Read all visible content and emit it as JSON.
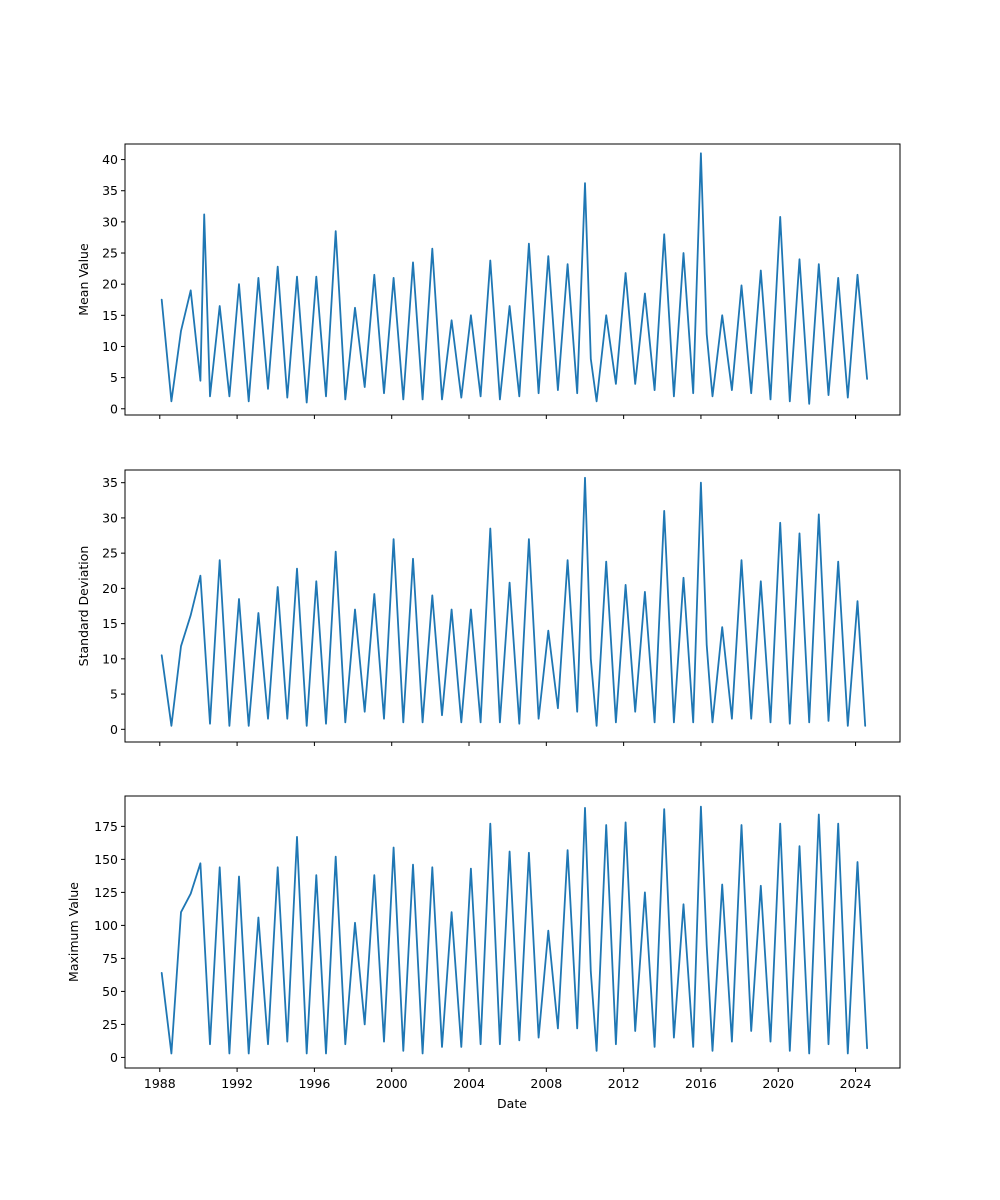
{
  "figure": {
    "xlabel": "Date",
    "line_color": "#1f77b4",
    "x_ticks": [
      "1988",
      "1992",
      "1996",
      "2000",
      "2004",
      "2008",
      "2012",
      "2016",
      "2020",
      "2024"
    ]
  },
  "chart_data": [
    {
      "type": "line",
      "title": "",
      "ylabel": "Mean Value",
      "xlabel": "",
      "x_unit": "year",
      "xlim": [
        1986.2,
        2026.3
      ],
      "ylim": [
        -1,
        42.5
      ],
      "y_ticks": [
        "0",
        "5",
        "10",
        "15",
        "20",
        "25",
        "30",
        "35",
        "40"
      ],
      "grid": false,
      "x": [
        1988.1,
        1988.6,
        1989.1,
        1989.6,
        1990.1,
        1990.3,
        1990.6,
        1991.1,
        1991.6,
        1992.1,
        1992.6,
        1993.1,
        1993.6,
        1994.1,
        1994.6,
        1995.1,
        1995.6,
        1996.1,
        1996.6,
        1997.1,
        1997.6,
        1998.1,
        1998.6,
        1999.1,
        1999.6,
        2000.1,
        2000.6,
        2001.1,
        2001.6,
        2002.1,
        2002.6,
        2003.1,
        2003.6,
        2004.1,
        2004.6,
        2005.1,
        2005.6,
        2006.1,
        2006.6,
        2007.1,
        2007.6,
        2008.1,
        2008.6,
        2009.1,
        2009.6,
        2010.0,
        2010.3,
        2010.6,
        2011.1,
        2011.6,
        2012.1,
        2012.6,
        2013.1,
        2013.6,
        2014.1,
        2014.6,
        2015.1,
        2015.6,
        2016.0,
        2016.3,
        2016.6,
        2017.1,
        2017.6,
        2018.1,
        2018.6,
        2019.1,
        2019.6,
        2020.1,
        2020.6,
        2021.1,
        2021.6,
        2022.1,
        2022.6,
        2023.1,
        2023.6,
        2024.1,
        2024.6
      ],
      "values": [
        17.5,
        1.2,
        12.5,
        19.0,
        4.5,
        31.2,
        2.0,
        16.5,
        2.0,
        20.0,
        1.2,
        21.0,
        3.2,
        22.8,
        1.8,
        21.2,
        1.0,
        21.2,
        2.0,
        28.5,
        1.5,
        16.2,
        3.5,
        21.5,
        2.5,
        21.0,
        1.5,
        23.5,
        1.5,
        25.7,
        1.5,
        14.2,
        1.8,
        15.0,
        2.0,
        23.8,
        1.5,
        16.5,
        2.0,
        26.5,
        2.5,
        24.5,
        3.0,
        23.2,
        2.5,
        36.2,
        8.0,
        1.2,
        15.0,
        4.0,
        21.8,
        4.0,
        18.5,
        3.0,
        28.0,
        2.0,
        25.0,
        2.5,
        41.0,
        12.0,
        2.0,
        15.0,
        3.0,
        19.8,
        2.5,
        22.2,
        1.5,
        30.8,
        1.2,
        24.0,
        0.8,
        23.2,
        2.2,
        21.0,
        1.8,
        21.5,
        4.8
      ]
    },
    {
      "type": "line",
      "title": "",
      "ylabel": "Standard Deviation",
      "xlabel": "",
      "x_unit": "year",
      "xlim": [
        1986.2,
        2026.3
      ],
      "ylim": [
        -1.8,
        36.8
      ],
      "y_ticks": [
        "0",
        "5",
        "10",
        "15",
        "20",
        "25",
        "30",
        "35"
      ],
      "grid": false,
      "x": [
        1988.1,
        1988.6,
        1989.1,
        1989.6,
        1990.1,
        1990.6,
        1991.1,
        1991.6,
        1992.1,
        1992.6,
        1993.1,
        1993.6,
        1994.1,
        1994.6,
        1995.1,
        1995.6,
        1996.1,
        1996.6,
        1997.1,
        1997.6,
        1998.1,
        1998.6,
        1999.1,
        1999.6,
        2000.1,
        2000.6,
        2001.1,
        2001.6,
        2002.1,
        2002.6,
        2003.1,
        2003.6,
        2004.1,
        2004.6,
        2005.1,
        2005.6,
        2006.1,
        2006.6,
        2007.1,
        2007.6,
        2008.1,
        2008.6,
        2009.1,
        2009.6,
        2010.0,
        2010.3,
        2010.6,
        2011.1,
        2011.6,
        2012.1,
        2012.6,
        2013.1,
        2013.6,
        2014.1,
        2014.6,
        2015.1,
        2015.6,
        2016.0,
        2016.3,
        2016.6,
        2017.1,
        2017.6,
        2018.1,
        2018.6,
        2019.1,
        2019.6,
        2020.1,
        2020.6,
        2021.1,
        2021.6,
        2022.1,
        2022.6,
        2023.1,
        2023.6,
        2024.1,
        2024.5
      ],
      "values": [
        10.5,
        0.5,
        11.8,
        16.2,
        21.8,
        0.8,
        24.0,
        0.5,
        18.5,
        0.5,
        16.5,
        1.5,
        20.2,
        1.5,
        22.8,
        0.5,
        21.0,
        0.8,
        25.2,
        1.0,
        17.0,
        2.5,
        19.2,
        1.5,
        27.0,
        1.0,
        24.2,
        1.0,
        19.0,
        2.0,
        17.0,
        1.0,
        17.0,
        1.0,
        28.5,
        1.0,
        20.8,
        0.8,
        27.0,
        1.5,
        14.0,
        3.0,
        24.0,
        2.5,
        35.7,
        10.0,
        0.5,
        23.8,
        1.0,
        20.5,
        2.5,
        19.5,
        1.0,
        31.0,
        1.0,
        21.5,
        1.0,
        35.0,
        12.0,
        1.0,
        14.5,
        1.5,
        24.0,
        1.5,
        21.0,
        1.0,
        29.3,
        0.8,
        27.8,
        1.0,
        30.5,
        1.2,
        23.8,
        0.5,
        18.2,
        0.5
      ]
    },
    {
      "type": "line",
      "title": "",
      "ylabel": "Maximum Value",
      "xlabel": "",
      "x_unit": "year",
      "xlim": [
        1986.2,
        2026.3
      ],
      "ylim": [
        -8,
        198
      ],
      "y_ticks": [
        "0",
        "25",
        "50",
        "75",
        "100",
        "125",
        "150",
        "175"
      ],
      "grid": false,
      "x": [
        1988.1,
        1988.6,
        1989.1,
        1989.6,
        1990.1,
        1990.6,
        1991.1,
        1991.6,
        1992.1,
        1992.6,
        1993.1,
        1993.6,
        1994.1,
        1994.6,
        1995.1,
        1995.6,
        1996.1,
        1996.6,
        1997.1,
        1997.6,
        1998.1,
        1998.6,
        1999.1,
        1999.6,
        2000.1,
        2000.6,
        2001.1,
        2001.6,
        2002.1,
        2002.6,
        2003.1,
        2003.6,
        2004.1,
        2004.6,
        2005.1,
        2005.6,
        2006.1,
        2006.6,
        2007.1,
        2007.6,
        2008.1,
        2008.6,
        2009.1,
        2009.6,
        2010.0,
        2010.3,
        2010.6,
        2011.1,
        2011.6,
        2012.1,
        2012.6,
        2013.1,
        2013.6,
        2014.1,
        2014.6,
        2015.1,
        2015.6,
        2016.0,
        2016.3,
        2016.6,
        2017.1,
        2017.6,
        2018.1,
        2018.6,
        2019.1,
        2019.6,
        2020.1,
        2020.6,
        2021.1,
        2021.6,
        2022.1,
        2022.6,
        2023.1,
        2023.6,
        2024.1,
        2024.6
      ],
      "values": [
        64,
        3,
        110,
        124,
        147,
        10,
        144,
        3,
        137,
        3,
        106,
        10,
        144,
        12,
        167,
        3,
        138,
        3,
        152,
        10,
        102,
        25,
        138,
        12,
        159,
        5,
        146,
        3,
        144,
        8,
        110,
        8,
        143,
        10,
        177,
        10,
        156,
        13,
        155,
        15,
        96,
        22,
        157,
        22,
        189,
        65,
        5,
        176,
        10,
        178,
        20,
        125,
        8,
        188,
        15,
        116,
        8,
        190,
        85,
        5,
        131,
        12,
        176,
        20,
        130,
        12,
        177,
        5,
        160,
        3,
        184,
        10,
        177,
        3,
        148,
        7
      ]
    }
  ]
}
